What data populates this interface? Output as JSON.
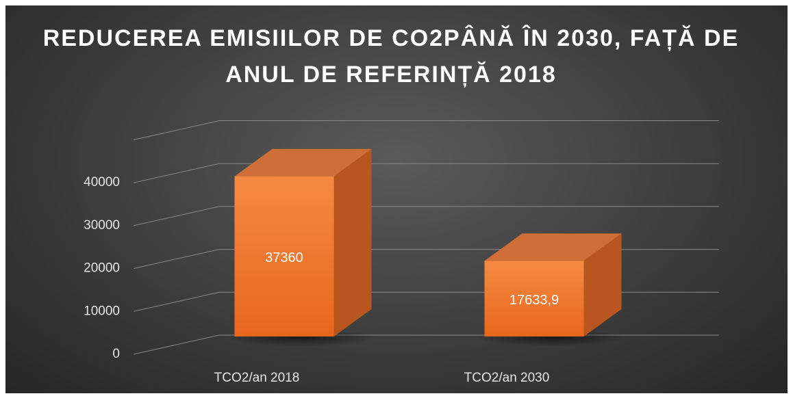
{
  "chart_data": {
    "type": "bar3d",
    "title": "REDUCEREA EMISIILOR DE CO2PÂNĂ ÎN 2030, FAȚĂ DE ANUL DE REFERINȚĂ 2018",
    "categories": [
      "TCO2/an 2018",
      "TCO2/an 2030"
    ],
    "values": [
      37360,
      17633.9
    ],
    "value_labels": [
      "37360",
      "17633,9"
    ],
    "color": "#f07a2c",
    "ylim": [
      0,
      50000
    ],
    "yticks": [
      0,
      10000,
      20000,
      30000,
      40000
    ],
    "grid": true
  }
}
